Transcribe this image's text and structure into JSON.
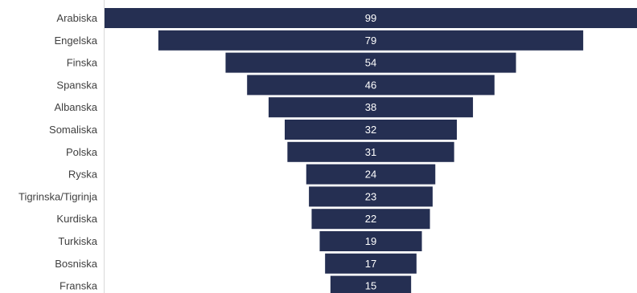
{
  "chart_data": {
    "type": "bar",
    "orientation": "horizontal-funnel",
    "categories": [
      "Arabiska",
      "Engelska",
      "Finska",
      "Spanska",
      "Albanska",
      "Somaliska",
      "Polska",
      "Ryska",
      "Tigrinska/Tigrinja",
      "Kurdiska",
      "Turkiska",
      "Bosniska",
      "Franska"
    ],
    "values": [
      99,
      79,
      54,
      46,
      38,
      32,
      31,
      24,
      23,
      22,
      19,
      17,
      15
    ],
    "title": "",
    "xlabel": "",
    "ylabel": "",
    "grid": false,
    "bar_color": "#252f52",
    "value_label_color": "#ffffff",
    "axis_line_color": "#d9d9d9"
  }
}
